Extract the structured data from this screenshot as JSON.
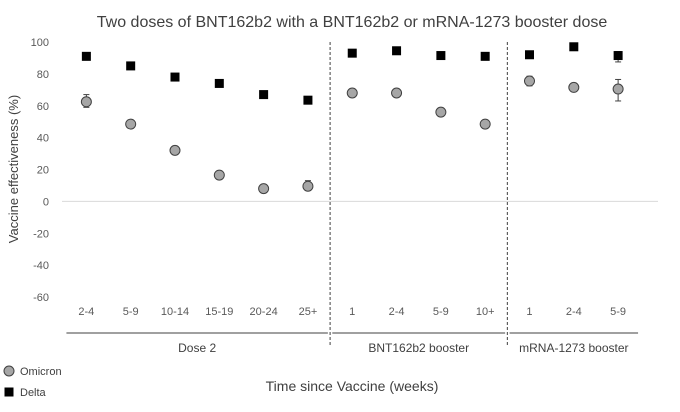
{
  "chart_data": {
    "type": "scatter",
    "title": "Two doses of BNT162b2 with a BNT162b2 or mRNA-1273 booster dose",
    "xlabel": "Time since Vaccine (weeks)",
    "ylabel": "Vaccine effectiveness (%)",
    "ylim": [
      -60,
      100
    ],
    "yticks": [
      100,
      80,
      60,
      40,
      20,
      0,
      -20,
      -40,
      -60
    ],
    "groups": [
      {
        "label": "Dose 2",
        "categories": [
          "2-4",
          "5-9",
          "10-14",
          "15-19",
          "20-24",
          "25+"
        ]
      },
      {
        "label": "BNT162b2 booster",
        "categories": [
          "1",
          "2-4",
          "5-9",
          "10+"
        ]
      },
      {
        "label": "mRNA-1273 booster",
        "categories": [
          "1",
          "2-4",
          "5-9"
        ]
      }
    ],
    "series": [
      {
        "name": "Omicron",
        "marker": "circle",
        "color": "#a6a6a6",
        "values": [
          62.5,
          48.5,
          32,
          16.5,
          8,
          9.5,
          68,
          68,
          56,
          48.5,
          75.5,
          71.5,
          70.5
        ],
        "ci_low": [
          59,
          46,
          30.5,
          14.5,
          6.5,
          7,
          66.5,
          66.5,
          54.5,
          46.5,
          72.5,
          69.5,
          63
        ],
        "ci_high": [
          67,
          51,
          33.5,
          18.5,
          9.5,
          13,
          69.5,
          69.5,
          57.5,
          50.5,
          78.5,
          74,
          76.5
        ]
      },
      {
        "name": "Delta",
        "marker": "square",
        "color": "#000000",
        "values": [
          91,
          85,
          78,
          74,
          67,
          63.5,
          93,
          94.5,
          91.5,
          91,
          92,
          97,
          91.5
        ],
        "ci_low": [
          90,
          84,
          77,
          73,
          66,
          62,
          92,
          94,
          91,
          90,
          91,
          96,
          87.5
        ],
        "ci_high": [
          92,
          86,
          79,
          75,
          68,
          65,
          94,
          95,
          92,
          92,
          93,
          98,
          94
        ]
      }
    ],
    "legend_position": "bottom-left",
    "grid": false
  }
}
